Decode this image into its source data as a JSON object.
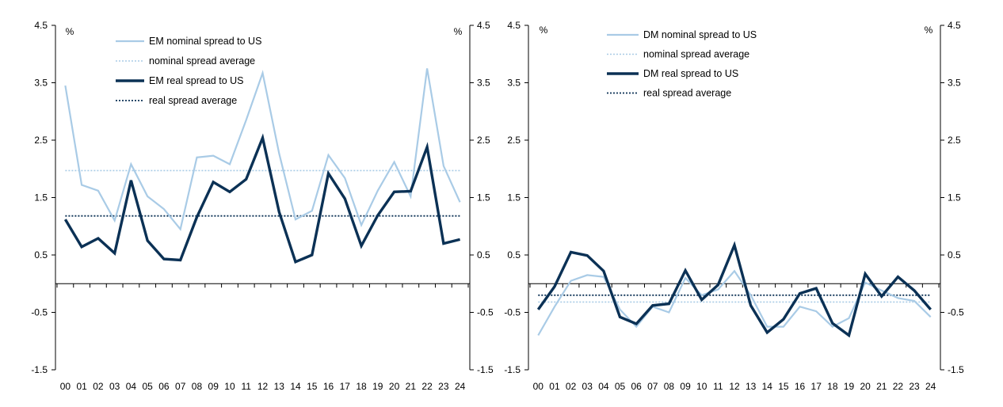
{
  "colors": {
    "nominal": "#a9cbe6",
    "real": "#0b3155",
    "axis": "#000000"
  },
  "chart_data": [
    {
      "type": "line",
      "categories": [
        "00",
        "01",
        "02",
        "03",
        "04",
        "05",
        "06",
        "07",
        "08",
        "09",
        "10",
        "11",
        "12",
        "13",
        "14",
        "15",
        "16",
        "17",
        "18",
        "19",
        "20",
        "21",
        "22",
        "23",
        "24"
      ],
      "ylim": [
        -1.5,
        4.5
      ],
      "yticks": [
        4.5,
        3.5,
        2.5,
        1.5,
        0.5,
        -0.5,
        -1.5
      ],
      "ylabel_left": "%",
      "ylabel_right": "%",
      "legend_position": "top-left",
      "series": [
        {
          "name": "EM nominal spread to US",
          "style": "solid-light",
          "values": [
            3.45,
            1.72,
            1.62,
            1.1,
            2.08,
            1.52,
            1.3,
            0.95,
            2.2,
            2.23,
            2.08,
            2.85,
            3.67,
            2.27,
            1.12,
            1.27,
            2.24,
            1.84,
            1.02,
            1.62,
            2.12,
            1.52,
            3.75,
            2.05,
            1.42
          ]
        },
        {
          "name": "nominal spread average",
          "style": "dotted-light",
          "values": [
            1.97,
            1.97,
            1.97,
            1.97,
            1.97,
            1.97,
            1.97,
            1.97,
            1.97,
            1.97,
            1.97,
            1.97,
            1.97,
            1.97,
            1.97,
            1.97,
            1.97,
            1.97,
            1.97,
            1.97,
            1.97,
            1.97,
            1.97,
            1.97,
            1.97
          ]
        },
        {
          "name": "EM real spread to US",
          "style": "solid-dark",
          "values": [
            1.12,
            0.64,
            0.79,
            0.53,
            1.8,
            0.75,
            0.43,
            0.41,
            1.16,
            1.77,
            1.6,
            1.82,
            2.54,
            1.25,
            0.38,
            0.5,
            1.92,
            1.48,
            0.66,
            1.19,
            1.6,
            1.61,
            2.38,
            0.7,
            0.77
          ]
        },
        {
          "name": "real spread average",
          "style": "dotted-dark",
          "values": [
            1.18,
            1.18,
            1.18,
            1.18,
            1.18,
            1.18,
            1.18,
            1.18,
            1.18,
            1.18,
            1.18,
            1.18,
            1.18,
            1.18,
            1.18,
            1.18,
            1.18,
            1.18,
            1.18,
            1.18,
            1.18,
            1.18,
            1.18,
            1.18,
            1.18
          ]
        }
      ]
    },
    {
      "type": "line",
      "categories": [
        "00",
        "01",
        "02",
        "03",
        "04",
        "05",
        "06",
        "07",
        "08",
        "09",
        "10",
        "11",
        "12",
        "13",
        "14",
        "15",
        "16",
        "17",
        "18",
        "19",
        "20",
        "21",
        "22",
        "23",
        "24"
      ],
      "ylim": [
        -1.5,
        4.5
      ],
      "yticks": [
        4.5,
        3.5,
        2.5,
        1.5,
        0.5,
        -0.5,
        -1.5
      ],
      "ylabel_left": "%",
      "ylabel_right": "%",
      "legend_position": "top-center",
      "series": [
        {
          "name": "DM nominal spread to US",
          "style": "solid-light",
          "values": [
            -0.9,
            -0.4,
            0.05,
            0.15,
            0.12,
            -0.45,
            -0.75,
            -0.4,
            -0.5,
            0.1,
            -0.2,
            -0.1,
            0.22,
            -0.2,
            -0.75,
            -0.75,
            -0.4,
            -0.48,
            -0.75,
            -0.6,
            0.02,
            -0.12,
            -0.25,
            -0.3,
            -0.58
          ]
        },
        {
          "name": "nominal spread average",
          "style": "dotted-light",
          "values": [
            -0.32,
            -0.32,
            -0.32,
            -0.32,
            -0.32,
            -0.32,
            -0.32,
            -0.32,
            -0.32,
            -0.32,
            -0.32,
            -0.32,
            -0.32,
            -0.32,
            -0.32,
            -0.32,
            -0.32,
            -0.32,
            -0.32,
            -0.32,
            -0.32,
            -0.32,
            -0.32,
            -0.32,
            -0.32
          ]
        },
        {
          "name": "DM real spread to US",
          "style": "solid-dark",
          "values": [
            -0.45,
            -0.05,
            0.55,
            0.49,
            0.22,
            -0.58,
            -0.7,
            -0.38,
            -0.35,
            0.23,
            -0.28,
            -0.02,
            0.67,
            -0.38,
            -0.85,
            -0.62,
            -0.17,
            -0.08,
            -0.69,
            -0.9,
            0.17,
            -0.22,
            0.12,
            -0.12,
            -0.45
          ]
        },
        {
          "name": "real spread average",
          "style": "dotted-dark",
          "values": [
            -0.2,
            -0.2,
            -0.2,
            -0.2,
            -0.2,
            -0.2,
            -0.2,
            -0.2,
            -0.2,
            -0.2,
            -0.2,
            -0.2,
            -0.2,
            -0.2,
            -0.2,
            -0.2,
            -0.2,
            -0.2,
            -0.2,
            -0.2,
            -0.2,
            -0.2,
            -0.2,
            -0.2,
            -0.2
          ]
        }
      ]
    }
  ]
}
